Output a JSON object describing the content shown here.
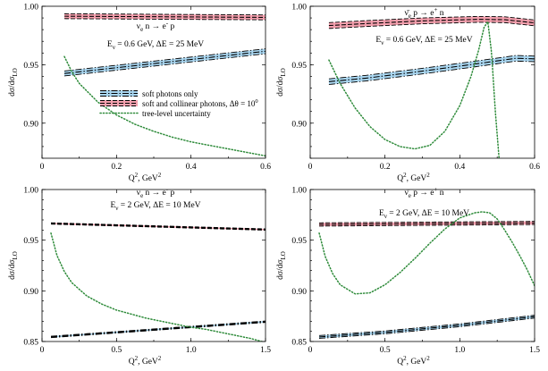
{
  "chart_data": [
    {
      "type": "line",
      "process": "ν_e n → e⁻ p",
      "annotation": "Eν = 0.6 GeV, ΔE = 25 MeV",
      "title_parts": {
        "nu": "ν",
        "sub": "e",
        "rest": " n → e",
        "sup": "-",
        "tail": " p"
      },
      "ann_parts": {
        "a": "E",
        "sub": "ν",
        "b": " = 0.6 GeV, ΔE = 25 MeV"
      },
      "xlabel_parts": {
        "a": "Q",
        "sup": "2",
        "b": ", GeV",
        "sup2": "2"
      },
      "ylabel_parts": {
        "a": "dσ/dσ",
        "sub": "LO"
      },
      "xlim": [
        0,
        0.6
      ],
      "ylim": [
        0.87,
        1.0
      ],
      "xticks": [
        "0",
        "0.2",
        "0.4",
        "0.6"
      ],
      "xtick_values": [
        0,
        0.2,
        0.4,
        0.6
      ],
      "yticks": [
        "0.90",
        "0.95",
        "1.00"
      ],
      "ytick_values": [
        0.9,
        0.95,
        1.0
      ],
      "series": [
        {
          "style": "soft",
          "color": "#a9d6f0",
          "x": [
            0.06,
            0.6
          ],
          "y": [
            0.9425,
            0.9615
          ],
          "width": 0.0042
        },
        {
          "style": "collinear",
          "color": "#f4a0ae",
          "x": [
            0.06,
            0.6
          ],
          "y": [
            0.9915,
            0.9905
          ],
          "width": 0.0042
        },
        {
          "style": "tree",
          "color": "#2e8b3a",
          "x": [
            0.06,
            0.08,
            0.1,
            0.15,
            0.2,
            0.25,
            0.3,
            0.35,
            0.4,
            0.45,
            0.5,
            0.55,
            0.6
          ],
          "y": [
            0.957,
            0.944,
            0.934,
            0.918,
            0.907,
            0.899,
            0.893,
            0.888,
            0.884,
            0.881,
            0.878,
            0.875,
            0.872
          ]
        }
      ]
    },
    {
      "type": "line",
      "process": "ν̄_e p → e⁺ n",
      "annotation": "Eν = 0.6 GeV, ΔE = 25 MeV",
      "title_parts": {
        "nu": "ν̄",
        "sub": "e",
        "rest": " p → e",
        "sup": "+",
        "tail": " n"
      },
      "ann_parts": {
        "a": "E",
        "sub": "ν",
        "b": " = 0.6 GeV, ΔE = 25 MeV"
      },
      "xlabel_parts": {
        "a": "Q",
        "sup": "2",
        "b": ", GeV",
        "sup2": "2"
      },
      "ylabel_parts": {
        "a": "dσ/dσ",
        "sub": "LO"
      },
      "xlim": [
        0,
        0.6
      ],
      "ylim": [
        0.87,
        1.0
      ],
      "xticks": [
        "0",
        "0.2",
        "0.4",
        "0.6"
      ],
      "xtick_values": [
        0,
        0.2,
        0.4,
        0.6
      ],
      "yticks": [
        "0.90",
        "0.95",
        "1.00"
      ],
      "ytick_values": [
        0.9,
        0.95,
        1.0
      ],
      "series": [
        {
          "style": "soft",
          "color": "#a9d6f0",
          "x": [
            0.05,
            0.15,
            0.3,
            0.45,
            0.55,
            0.6
          ],
          "y": [
            0.9355,
            0.9385,
            0.9445,
            0.951,
            0.9555,
            0.955
          ],
          "width": 0.0048
        },
        {
          "style": "collinear",
          "color": "#f4a0ae",
          "x": [
            0.05,
            0.15,
            0.3,
            0.45,
            0.52,
            0.6
          ],
          "y": [
            0.9835,
            0.9852,
            0.9875,
            0.9888,
            0.9885,
            0.9858
          ],
          "width": 0.005
        },
        {
          "style": "tree",
          "color": "#2e8b3a",
          "x": [
            0.05,
            0.08,
            0.12,
            0.16,
            0.2,
            0.24,
            0.28,
            0.32,
            0.36,
            0.4,
            0.43,
            0.45,
            0.465,
            0.475,
            0.485,
            0.495,
            0.505
          ],
          "y": [
            0.954,
            0.934,
            0.913,
            0.897,
            0.886,
            0.88,
            0.878,
            0.881,
            0.893,
            0.915,
            0.94,
            0.962,
            0.982,
            0.987,
            0.96,
            0.91,
            0.87
          ]
        }
      ]
    },
    {
      "type": "line",
      "process": "ν_e n → e⁻ p",
      "annotation": "Eν = 2 GeV, ΔE = 10 MeV",
      "title_parts": {
        "nu": "ν",
        "sub": "e",
        "rest": " n → e",
        "sup": "-",
        "tail": " p"
      },
      "ann_parts": {
        "a": "E",
        "sub": "ν",
        "b": " = 2 GeV, ΔE = 10 MeV"
      },
      "xlabel_parts": {
        "a": "Q",
        "sup": "2",
        "b": ", GeV",
        "sup2": "2"
      },
      "ylabel_parts": {
        "a": "dσ/dσ",
        "sub": "LO"
      },
      "xlim": [
        0,
        1.5
      ],
      "ylim": [
        0.85,
        1.0
      ],
      "xticks": [
        "0",
        "0.5",
        "1.0",
        "1.5"
      ],
      "xtick_values": [
        0,
        0.5,
        1.0,
        1.5
      ],
      "yticks": [
        "0.85",
        "0.90",
        "0.95",
        "1.00"
      ],
      "ytick_values": [
        0.85,
        0.9,
        0.95,
        1.0
      ],
      "series": [
        {
          "style": "soft",
          "color": "#a9d6f0",
          "x": [
            0.06,
            1.5
          ],
          "y": [
            0.8545,
            0.8695
          ],
          "width": 0.0014
        },
        {
          "style": "collinear",
          "color": "#f4a0ae",
          "x": [
            0.06,
            1.5
          ],
          "y": [
            0.9665,
            0.9605
          ],
          "width": 0.0013
        },
        {
          "style": "tree",
          "color": "#2e8b3a",
          "x": [
            0.06,
            0.1,
            0.15,
            0.2,
            0.3,
            0.4,
            0.5,
            0.6,
            0.7,
            0.8,
            0.9,
            1.0,
            1.1,
            1.2,
            1.3,
            1.4,
            1.5
          ],
          "y": [
            0.957,
            0.935,
            0.919,
            0.908,
            0.895,
            0.887,
            0.881,
            0.877,
            0.873,
            0.87,
            0.867,
            0.864,
            0.862,
            0.859,
            0.856,
            0.853,
            0.849
          ]
        }
      ]
    },
    {
      "type": "line",
      "process": "ν̄_e p → e⁺ n",
      "annotation": "Eν = 2 GeV, ΔE = 10 MeV",
      "title_parts": {
        "nu": "ν̄",
        "sub": "e",
        "rest": " p → e",
        "sup": "+",
        "tail": " n"
      },
      "ann_parts": {
        "a": "E",
        "sub": "ν",
        "b": " = 2 GeV, ΔE = 10 MeV"
      },
      "xlabel_parts": {
        "a": "Q",
        "sup": "2",
        "b": ", GeV",
        "sup2": "2"
      },
      "ylabel_parts": {
        "a": "dσ/dσ",
        "sub": "LO"
      },
      "xlim": [
        0,
        1.5
      ],
      "ylim": [
        0.85,
        1.0
      ],
      "xticks": [
        "0",
        "0.5",
        "1.0",
        "1.5"
      ],
      "xtick_values": [
        0,
        0.5,
        1.0,
        1.5
      ],
      "yticks": [
        "0.85",
        "0.90",
        "0.95",
        "1.00"
      ],
      "ytick_values": [
        0.85,
        0.9,
        0.95,
        1.0
      ],
      "series": [
        {
          "style": "soft",
          "color": "#a9d6f0",
          "x": [
            0.06,
            0.5,
            1.0,
            1.5
          ],
          "y": [
            0.8545,
            0.859,
            0.866,
            0.8745
          ],
          "width": 0.0028
        },
        {
          "style": "collinear",
          "color": "#f4a0ae",
          "x": [
            0.06,
            1.5
          ],
          "y": [
            0.9655,
            0.967
          ],
          "width": 0.0032
        },
        {
          "style": "tree",
          "color": "#2e8b3a",
          "x": [
            0.06,
            0.1,
            0.15,
            0.2,
            0.3,
            0.4,
            0.5,
            0.6,
            0.7,
            0.8,
            0.9,
            1.0,
            1.1,
            1.15,
            1.2,
            1.25,
            1.3,
            1.35,
            1.4,
            1.45,
            1.5
          ],
          "y": [
            0.957,
            0.934,
            0.917,
            0.906,
            0.897,
            0.898,
            0.906,
            0.918,
            0.932,
            0.947,
            0.961,
            0.972,
            0.977,
            0.978,
            0.977,
            0.971,
            0.96,
            0.948,
            0.935,
            0.921,
            0.905
          ]
        }
      ]
    }
  ],
  "legend": {
    "entries": [
      "soft photons only",
      "soft and collinear photons, Δθ = 10",
      "tree-level uncertainty"
    ],
    "superscript": "0",
    "placement": "inside-bottom-left of top-left panel"
  },
  "colors": {
    "soft_band": "#a9d6f0",
    "collinear_band": "#f4a0ae",
    "tree": "#2e8b3a",
    "line": "#000000"
  }
}
